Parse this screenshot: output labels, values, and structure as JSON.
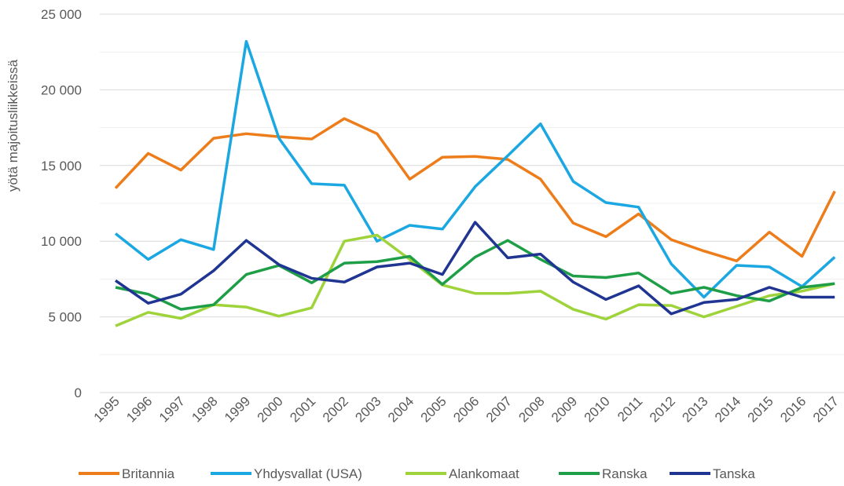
{
  "chart_data": {
    "type": "line",
    "y_label": "yötä majoitusliikkeissä",
    "categories": [
      "1995",
      "1996",
      "1997",
      "1998",
      "1999",
      "2000",
      "2001",
      "2002",
      "2003",
      "2004",
      "2005",
      "2006",
      "2007",
      "2008",
      "2009",
      "2010",
      "2011",
      "2012",
      "2013",
      "2014",
      "2015",
      "2016",
      "2017"
    ],
    "ylim": [
      0,
      25000
    ],
    "yticks": [
      0,
      {
        "value": 5000,
        "label": "5 000"
      },
      {
        "value": 10000,
        "label": "10 000"
      },
      {
        "value": 15000,
        "label": "15 000"
      },
      {
        "value": 20000,
        "label": "20 000"
      },
      {
        "value": 25000,
        "label": "25 000"
      }
    ],
    "yminor": [
      2500,
      7500,
      12500,
      17500,
      22500
    ],
    "grid": true,
    "legend": "bottom",
    "series": [
      {
        "name": "Britannia",
        "color": "#ed7d1a",
        "values": [
          13500,
          15800,
          14700,
          16800,
          17100,
          16900,
          16750,
          18100,
          17100,
          14100,
          15550,
          15600,
          15400,
          14100,
          11200,
          10300,
          11800,
          10100,
          9350,
          8700,
          10600,
          9000,
          13300
        ]
      },
      {
        "name": "Yhdysvallat (USA)",
        "color": "#1ba7e1",
        "values": [
          10500,
          8800,
          10100,
          9450,
          23200,
          16800,
          13800,
          13700,
          10000,
          11050,
          10800,
          13600,
          15650,
          17750,
          13950,
          12550,
          12250,
          8500,
          6300,
          8400,
          8300,
          7000,
          8950
        ]
      },
      {
        "name": "Alankomaat",
        "color": "#9fd33b",
        "values": [
          4400,
          5300,
          4900,
          5800,
          5650,
          5050,
          5600,
          10000,
          10400,
          8800,
          7100,
          6550,
          6550,
          6700,
          5500,
          4850,
          5800,
          5750,
          5000,
          5700,
          6400,
          6700,
          7200
        ]
      },
      {
        "name": "Ranska",
        "color": "#1f9e48",
        "values": [
          6950,
          6500,
          5500,
          5800,
          7800,
          8400,
          7250,
          8550,
          8650,
          9000,
          7150,
          8950,
          10050,
          8800,
          7700,
          7600,
          7900,
          6550,
          6950,
          6400,
          6050,
          6950,
          7200
        ]
      },
      {
        "name": "Tanska",
        "color": "#1f3591",
        "values": [
          7400,
          5900,
          6500,
          8050,
          10050,
          8450,
          7550,
          7300,
          8300,
          8550,
          7800,
          11250,
          8900,
          9150,
          7300,
          6150,
          7050,
          5200,
          5950,
          6150,
          6950,
          6300,
          6300
        ]
      }
    ]
  }
}
